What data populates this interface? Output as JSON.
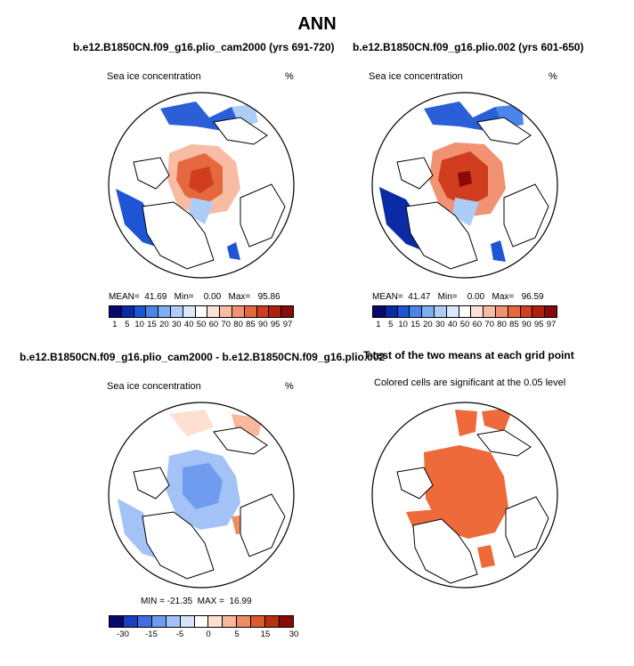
{
  "figure_title": "ANN",
  "colors": {
    "sic": [
      "#08086e",
      "#0b2aa6",
      "#1d55d4",
      "#4a86ea",
      "#7eaef2",
      "#aecdf6",
      "#dbe8fb",
      "#ffffff",
      "#fde1d4",
      "#f8bba4",
      "#f19372",
      "#e5683f",
      "#d13e1f",
      "#b0200f",
      "#8a0a0a"
    ],
    "diff": [
      "#08086e",
      "#1b3fbf",
      "#3f6fe0",
      "#6f9cef",
      "#a3c2f6",
      "#d4e2fb",
      "#ffffff",
      "#fde0d0",
      "#f8b89c",
      "#ef8c62",
      "#db5b2f",
      "#b8300f",
      "#8a0a0a"
    ],
    "sig": "#ee6a3a",
    "land_outline": "#000000"
  },
  "panels": {
    "p1": {
      "title": "b.e12.B1850CN.f09_g16.plio_cam2000 (yrs 691-720)",
      "left_label": "Sea ice concentration",
      "right_label": "%",
      "stats": "MEAN=  41.69   Min=    0.00   Max=   95.86",
      "cbar_ticks": [
        "1",
        "5",
        "10",
        "15",
        "20",
        "30",
        "40",
        "50",
        "60",
        "70",
        "80",
        "85",
        "90",
        "95",
        "97"
      ]
    },
    "p2": {
      "title": "b.e12.B1850CN.f09_g16.plio.002 (yrs 601-650)",
      "left_label": "Sea ice concentration",
      "right_label": "%",
      "stats": "MEAN=  41.47   Min=    0.00   Max=   96.59",
      "cbar_ticks": [
        "1",
        "5",
        "10",
        "15",
        "20",
        "30",
        "40",
        "50",
        "60",
        "70",
        "80",
        "85",
        "90",
        "95",
        "97"
      ]
    },
    "p3": {
      "title": "b.e12.B1850CN.f09_g16.plio_cam2000 - b.e12.B1850CN.f09_g16.plio.002",
      "left_label": "Sea ice concentration",
      "right_label": "%",
      "stats": "MIN = -21.35  MAX =  16.99",
      "cbar_ticks": [
        "-30",
        "-15",
        "-5",
        "0",
        "5",
        "15",
        "30"
      ]
    },
    "p4": {
      "title": "T-test of the two means at each grid point",
      "subtitle": "Colored cells are significant at the 0.05 level"
    }
  }
}
